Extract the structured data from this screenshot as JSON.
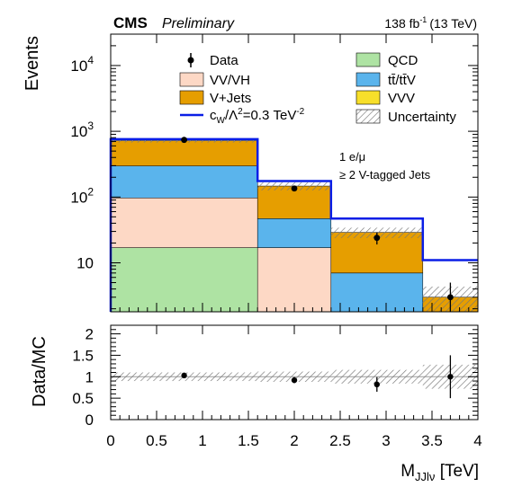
{
  "header": {
    "experiment": "CMS",
    "status": "Preliminary",
    "lumi": "138 fb",
    "lumi_exp": "-1",
    "energy": "(13 TeV)"
  },
  "colors": {
    "qcd": "#aee3a3",
    "vv": "#fdd8c5",
    "vjets": "#e69e00",
    "ttbar": "#5ab4ec",
    "vvv": "#f7df2a",
    "signal": "#0a1ee6",
    "uncertainty": "#777777"
  },
  "chart_data": [
    {
      "type": "bar",
      "stacked": true,
      "log_y": true,
      "ylabel": "Events",
      "ylim": [
        1.8,
        30000
      ],
      "yticks": [
        {
          "value": 10,
          "base": "10",
          "exp": ""
        },
        {
          "value": 100,
          "base": "10",
          "exp": "2"
        },
        {
          "value": 1000,
          "base": "10",
          "exp": "3"
        },
        {
          "value": 10000,
          "base": "10",
          "exp": "4"
        }
      ],
      "bins": [
        {
          "low": 0,
          "high": 1.6
        },
        {
          "low": 1.6,
          "high": 2.4
        },
        {
          "low": 2.4,
          "high": 3.4
        },
        {
          "low": 3.4,
          "high": 4.0
        }
      ],
      "series": [
        {
          "key": "qcd",
          "name": "QCD",
          "values": [
            17,
            0,
            0,
            0
          ]
        },
        {
          "key": "vv",
          "name": "VV/VH",
          "values": [
            80,
            17,
            0,
            0
          ]
        },
        {
          "key": "ttbar",
          "name": "tt̄/tt̄V",
          "values": [
            200,
            30,
            7,
            0
          ]
        },
        {
          "key": "vjets",
          "name": "V+Jets",
          "values": [
            420,
            100,
            22,
            3
          ]
        },
        {
          "key": "vvv",
          "name": "VVV",
          "values": [
            0,
            0,
            0,
            0
          ]
        }
      ],
      "totals": [
        717,
        147,
        29,
        3
      ],
      "uncertainty_rel": [
        0.06,
        0.14,
        0.18,
        0.45
      ],
      "signal": {
        "name": "c",
        "sub": "W",
        "values": [
          760,
          175,
          47,
          11
        ]
      },
      "data": {
        "name": "Data",
        "x": [
          0.8,
          2.0,
          2.9,
          3.7
        ],
        "y": [
          740,
          135,
          24,
          3
        ],
        "err_low": [
          27,
          12,
          5,
          1.2
        ],
        "err_high": [
          27,
          12,
          5,
          2.0
        ]
      },
      "legend": {
        "data": "Data",
        "vv": "VV/VH",
        "vjets": "V+Jets",
        "signal_pre": "c",
        "signal_sub": "W",
        "signal_mid": "/Λ",
        "signal_sup": "2",
        "signal_post": "=0.3 TeV",
        "signal_post_sup": "-2",
        "qcd": "QCD",
        "ttbar": "tt̄/tt̄V",
        "vvv": "VVV",
        "uncertainty": "Uncertainty"
      },
      "annotations": [
        "1 e/μ",
        "≥ 2 V-tagged Jets"
      ]
    },
    {
      "type": "scatter",
      "ylabel": "Data/MC",
      "xlabel": "M",
      "xlabel_sub": "JJlν",
      "xlabel_unit": " [TeV]",
      "xlim": [
        0,
        4
      ],
      "ylim": [
        0,
        2.2
      ],
      "xticks": [
        {
          "value": 0,
          "label": "0"
        },
        {
          "value": 0.5,
          "label": "0.5"
        },
        {
          "value": 1,
          "label": "1"
        },
        {
          "value": 1.5,
          "label": "1.5"
        },
        {
          "value": 2,
          "label": "2"
        },
        {
          "value": 2.5,
          "label": "2.5"
        },
        {
          "value": 3,
          "label": "3"
        },
        {
          "value": 3.5,
          "label": "3.5"
        },
        {
          "value": 4,
          "label": "4"
        }
      ],
      "yticks": [
        {
          "value": 0,
          "label": "0"
        },
        {
          "value": 0.5,
          "label": "0.5"
        },
        {
          "value": 1,
          "label": "1"
        },
        {
          "value": 1.5,
          "label": "1.5"
        },
        {
          "value": 2,
          "label": "2"
        }
      ],
      "points": {
        "x": [
          0.8,
          2.0,
          2.9,
          3.7
        ],
        "y": [
          1.03,
          0.92,
          0.82,
          1.0
        ],
        "err": [
          0.04,
          0.07,
          0.17,
          0.5
        ]
      },
      "band": [
        {
          "low": 0,
          "high": 1.6,
          "rel": 0.1
        },
        {
          "low": 1.6,
          "high": 2.4,
          "rel": 0.12
        },
        {
          "low": 2.4,
          "high": 3.4,
          "rel": 0.16
        },
        {
          "low": 3.4,
          "high": 4.0,
          "rel": 0.28
        }
      ]
    }
  ]
}
